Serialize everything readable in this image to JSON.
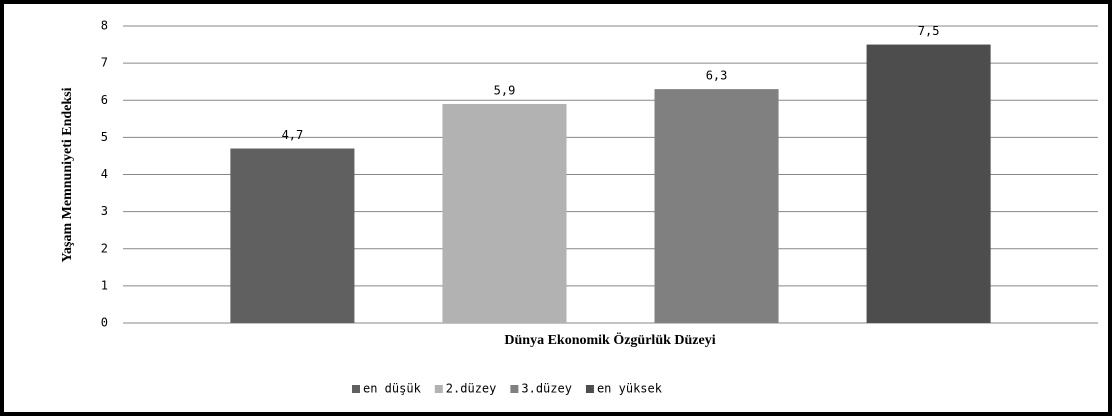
{
  "chart_data": {
    "type": "bar",
    "y_label": "Yaşam Memnuniyeti Endeksi",
    "x_label": "Dünya Ekonomik Özgürlük Düzeyi",
    "categories": [
      null
    ],
    "series": [
      {
        "name": "en düşük",
        "color": "#606060",
        "values": [
          4.7
        ],
        "value_labels": [
          "4,7"
        ]
      },
      {
        "name": "2.düzey",
        "color": "#b2b2b2",
        "values": [
          5.9
        ],
        "value_labels": [
          "5,9"
        ]
      },
      {
        "name": "3.düzey",
        "color": "#808080",
        "values": [
          6.3
        ],
        "value_labels": [
          "6,3"
        ]
      },
      {
        "name": "en yüksek",
        "color": "#4d4d4d",
        "values": [
          7.5
        ],
        "value_labels": [
          "7,5"
        ]
      }
    ],
    "ylim": [
      0,
      8
    ],
    "yticks": [
      0,
      1,
      2,
      3,
      4,
      5,
      6,
      7,
      8
    ],
    "grid": true,
    "legend": "bottom"
  }
}
